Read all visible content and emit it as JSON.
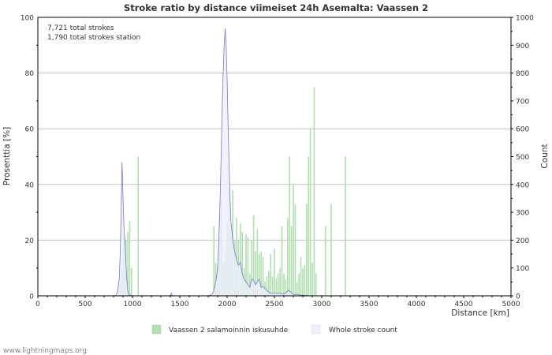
{
  "chart_data": {
    "type": "bar",
    "title": "Stroke ratio by distance viimeiset 24h Asemalta: Vaassen 2",
    "annotations": [
      "7,721 total strokes",
      "1,790 total strokes station"
    ],
    "xlabel": "Distance   [km]",
    "ylabel_left": "Prosenttia   [%]",
    "ylabel_right": "Count",
    "xlim": [
      0,
      5000
    ],
    "ylim_left": [
      0,
      100
    ],
    "ylim_right": [
      0,
      1000
    ],
    "x_ticks": [
      0,
      500,
      1000,
      1500,
      2000,
      2500,
      3000,
      3500,
      4000,
      4500,
      5000
    ],
    "y_ticks_left": [
      0,
      20,
      40,
      60,
      80,
      100
    ],
    "y_ticks_right": [
      0,
      100,
      200,
      300,
      400,
      500,
      600,
      700,
      800,
      900,
      1000
    ],
    "grid": true,
    "series": [
      {
        "name": "Vaassen 2 salamoinnin iskusuhde",
        "axis": "left",
        "kind": "bar",
        "color": "#b3e0b3",
        "x": [
          870,
          890,
          910,
          930,
          950,
          970,
          990,
          1060,
          1860,
          1880,
          1900,
          1920,
          1940,
          1960,
          1980,
          2000,
          2020,
          2040,
          2060,
          2080,
          2100,
          2120,
          2140,
          2160,
          2180,
          2200,
          2220,
          2240,
          2260,
          2280,
          2300,
          2320,
          2340,
          2360,
          2380,
          2400,
          2420,
          2440,
          2460,
          2480,
          2500,
          2520,
          2540,
          2560,
          2580,
          2600,
          2620,
          2640,
          2660,
          2680,
          2700,
          2720,
          2740,
          2760,
          2780,
          2800,
          2820,
          2840,
          2860,
          2880,
          2900,
          2920,
          2940,
          2960,
          3040,
          3100,
          3250
        ],
        "values": [
          5,
          10,
          22,
          20,
          23,
          27,
          10,
          50,
          25,
          12,
          11,
          29,
          35,
          12,
          16,
          26,
          39,
          23,
          38,
          20,
          28,
          20,
          26,
          23,
          10,
          22,
          21,
          8,
          20,
          29,
          16,
          24,
          15,
          16,
          14,
          5,
          7,
          9,
          15,
          7,
          17,
          6,
          8,
          10,
          25,
          8,
          6,
          28,
          50,
          25,
          40,
          33,
          5,
          8,
          14,
          10,
          11,
          33,
          50,
          60,
          12,
          75,
          8,
          0,
          25,
          33,
          50
        ]
      },
      {
        "name": "Whole stroke count",
        "axis": "right",
        "kind": "area",
        "color": "#eeeeff",
        "line_color": "#7777cc",
        "x": [
          800,
          820,
          840,
          860,
          870,
          880,
          890,
          900,
          910,
          920,
          930,
          940,
          950,
          960,
          980,
          1000,
          1050,
          1100,
          1400,
          1410,
          1420,
          1600,
          1800,
          1840,
          1860,
          1880,
          1900,
          1910,
          1920,
          1930,
          1940,
          1950,
          1960,
          1970,
          1980,
          1990,
          2000,
          2010,
          2020,
          2030,
          2040,
          2060,
          2080,
          2100,
          2120,
          2140,
          2160,
          2180,
          2200,
          2220,
          2240,
          2260,
          2280,
          2300,
          2320,
          2340,
          2360,
          2380,
          2400,
          2420,
          2450,
          2500,
          2550,
          2600,
          2650,
          2700,
          2800,
          2900,
          3000,
          3100,
          3200,
          3300
        ],
        "values": [
          0,
          0,
          10,
          60,
          150,
          300,
          480,
          350,
          250,
          200,
          120,
          60,
          20,
          5,
          2,
          0,
          0,
          0,
          0,
          10,
          0,
          0,
          0,
          5,
          20,
          50,
          100,
          180,
          280,
          400,
          550,
          700,
          820,
          910,
          960,
          900,
          780,
          620,
          480,
          360,
          270,
          200,
          160,
          130,
          110,
          120,
          80,
          60,
          50,
          40,
          30,
          60,
          55,
          40,
          50,
          60,
          30,
          35,
          25,
          20,
          10,
          10,
          10,
          5,
          20,
          5,
          2,
          0,
          0,
          0,
          0,
          0
        ]
      }
    ],
    "legend": "bottom-center"
  },
  "colors": {
    "background": "#ffffff",
    "plot_border": "#000000",
    "grid": "#c0c0c0",
    "text": "#333333",
    "footer": "#888888"
  },
  "footer": "www.lightningmaps.org"
}
